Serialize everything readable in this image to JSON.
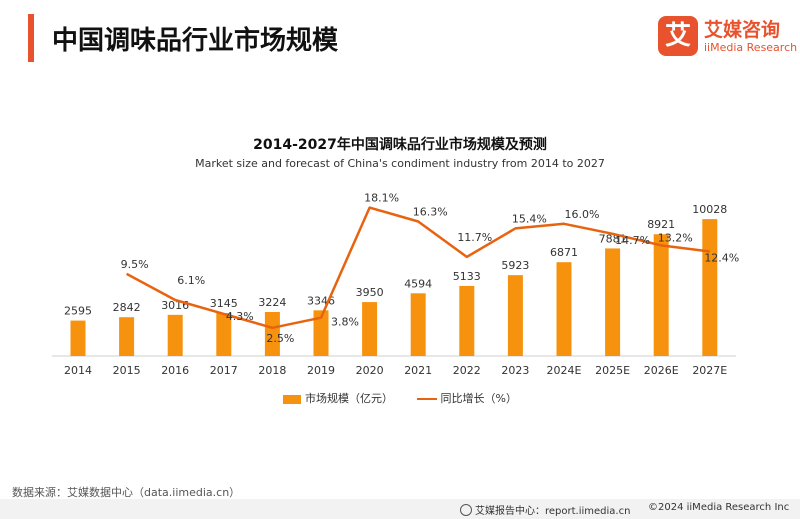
{
  "header": {
    "title": "中国调味品行业市场规模",
    "logo_mark": "艾",
    "logo_cn": "艾媒咨询",
    "logo_en": "iiMedia Research"
  },
  "chart_data": {
    "type": "bar",
    "title": "2014-2027年中国调味品行业市场规模及预测",
    "subtitle": "Market size and forecast of China's condiment industry from 2014 to 2027",
    "categories": [
      "2014",
      "2015",
      "2016",
      "2017",
      "2018",
      "2019",
      "2020",
      "2021",
      "2022",
      "2023",
      "2024E",
      "2025E",
      "2026E",
      "2027E"
    ],
    "series": [
      {
        "name": "市场规模（亿元）",
        "type": "bar",
        "color": "#f7920f",
        "values": [
          2595,
          2842,
          3016,
          3145,
          3224,
          3346,
          3950,
          4594,
          5133,
          5923,
          6871,
          7881,
          8921,
          10028
        ],
        "labels": [
          "2595",
          "2842",
          "3016",
          "3145",
          "3224",
          "3346",
          "3950",
          "4594",
          "5133",
          "5923",
          "6871",
          "7881",
          "8921",
          "10028"
        ]
      },
      {
        "name": "同比增长（%）",
        "type": "line",
        "color": "#e8630f",
        "values": [
          null,
          9.5,
          6.1,
          4.3,
          2.5,
          3.8,
          18.1,
          16.3,
          11.7,
          15.4,
          16.0,
          14.7,
          13.2,
          12.4
        ],
        "labels": [
          "",
          "9.5%",
          "6.1%",
          "4.3%",
          "2.5%",
          "3.8%",
          "18.1%",
          "16.3%",
          "11.7%",
          "15.4%",
          "16.0%",
          "14.7%",
          "13.2%",
          "12.4%"
        ]
      }
    ],
    "legend_position": "bottom",
    "grid": false
  },
  "footer": {
    "source": "数据来源：艾媒数据中心（data.iimedia.cn）",
    "report": "艾媒报告中心：report.iimedia.cn",
    "copyright": "©2024  iiMedia Research  Inc"
  }
}
